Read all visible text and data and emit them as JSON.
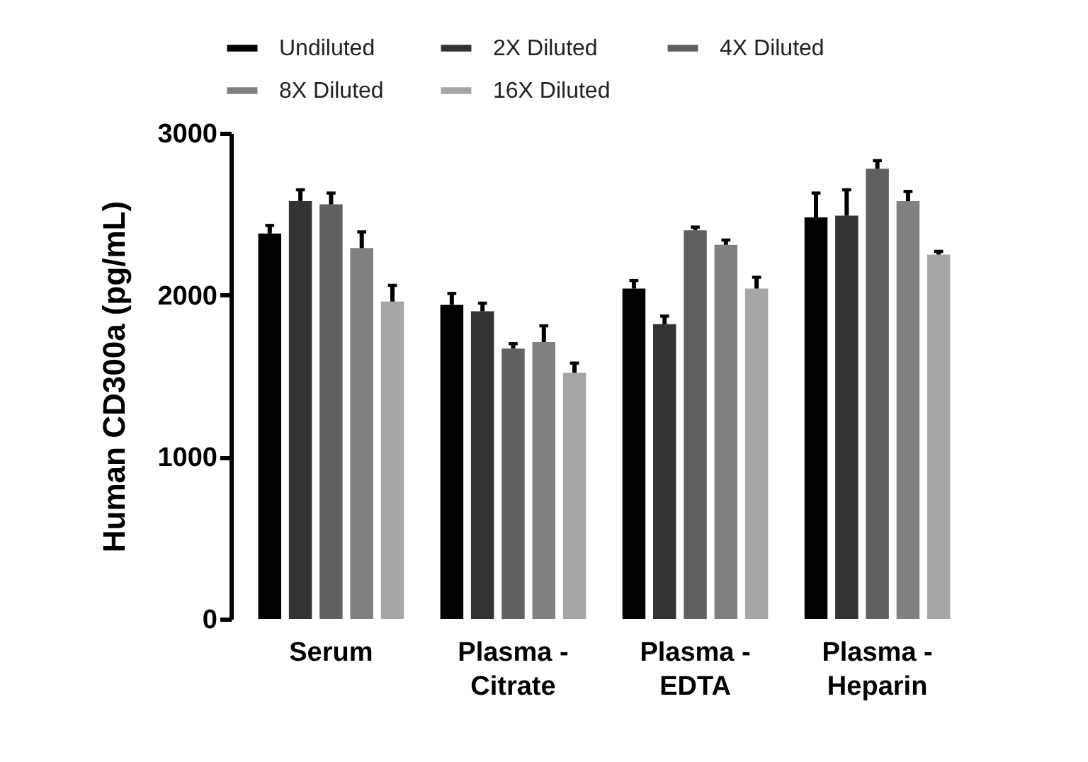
{
  "chart_data": {
    "type": "bar",
    "ylabel": "Human CD300a (pg/mL)",
    "categories": [
      "Serum",
      "Plasma - Citrate",
      "Plasma - EDTA",
      "Plasma - Heparin"
    ],
    "ylim": [
      0,
      3000
    ],
    "yticks": [
      0,
      1000,
      2000,
      3000
    ],
    "grid": false,
    "legend": "top",
    "series": [
      {
        "name": "Undiluted",
        "color": "#000000",
        "values": [
          2380,
          1940,
          2040,
          2480
        ],
        "errors": [
          50,
          70,
          50,
          150
        ]
      },
      {
        "name": "2X Diluted",
        "color": "#333333",
        "values": [
          2580,
          1900,
          1820,
          2490
        ],
        "errors": [
          70,
          50,
          50,
          160
        ]
      },
      {
        "name": "4X Diluted",
        "color": "#606060",
        "values": [
          2560,
          1670,
          2400,
          2780
        ],
        "errors": [
          70,
          30,
          20,
          50
        ]
      },
      {
        "name": "8X Diluted",
        "color": "#808080",
        "values": [
          2290,
          1710,
          2310,
          2580
        ],
        "errors": [
          100,
          100,
          30,
          60
        ]
      },
      {
        "name": "16X Diluted",
        "color": "#a6a6a6",
        "values": [
          1960,
          1520,
          2040,
          2250
        ],
        "errors": [
          100,
          60,
          70,
          20
        ]
      }
    ]
  }
}
